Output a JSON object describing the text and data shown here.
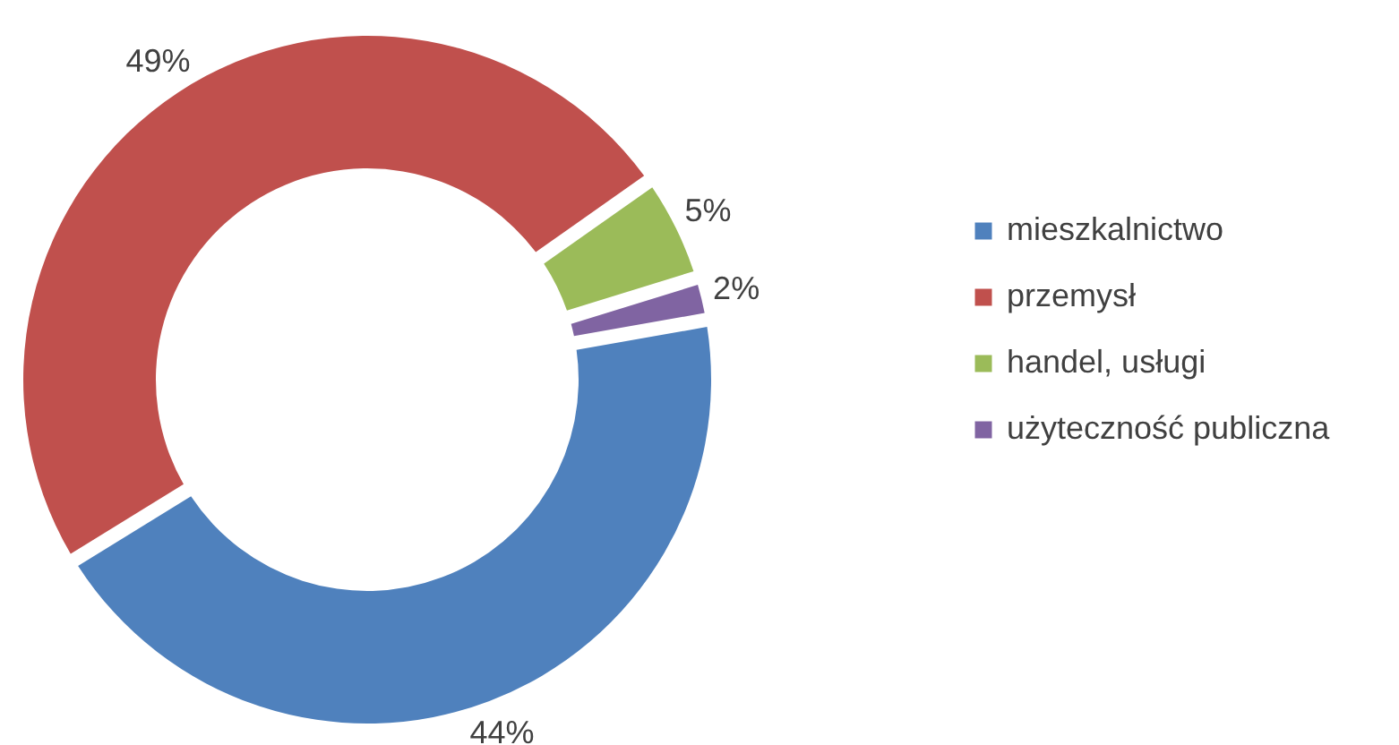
{
  "chart_data": {
    "type": "donut",
    "categories": [
      "mieszkalnictwo",
      "przemysł",
      "handel, usługi",
      "użyteczność publiczna"
    ],
    "values": [
      44,
      49,
      5,
      2
    ],
    "colors": [
      "#4f81bd",
      "#c0504d",
      "#9bbb59",
      "#8064a2"
    ],
    "value_labels": [
      "44%",
      "49%",
      "5%",
      "2%"
    ],
    "legend": "right"
  }
}
